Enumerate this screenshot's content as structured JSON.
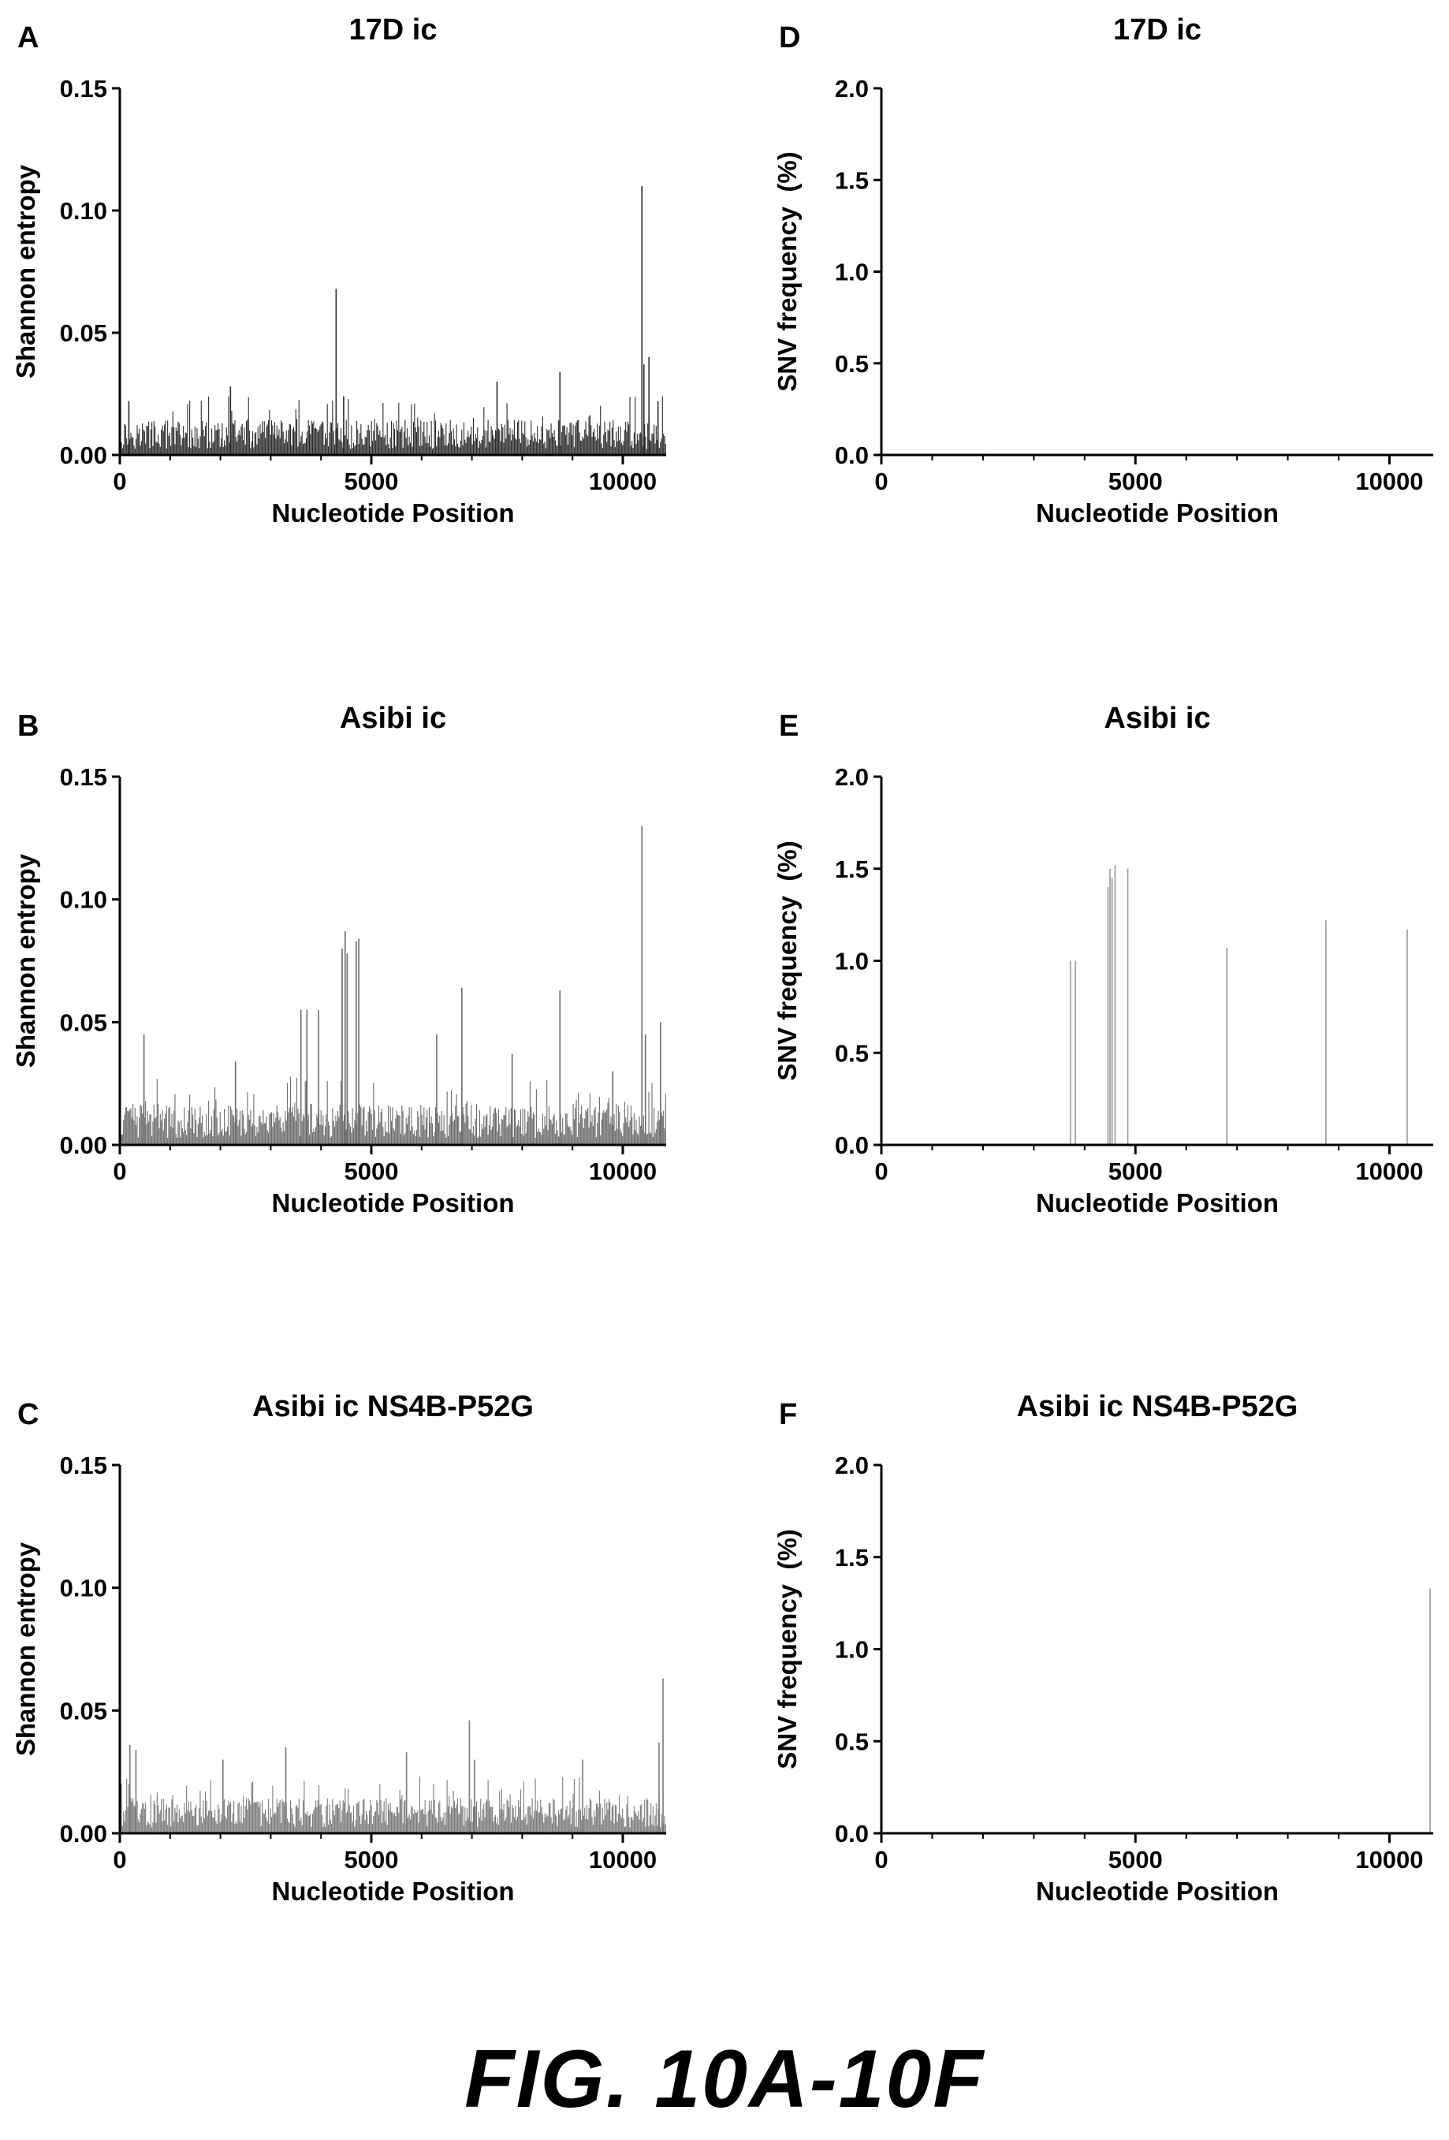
{
  "figure_caption": "FIG. 10A-10F",
  "chart_data": [
    {
      "panel_letter": "A",
      "title": "17D ic",
      "type": "bar",
      "xlabel": "Nucleotide Position",
      "ylabel": "Shannon entropy",
      "xlim": [
        0,
        10862
      ],
      "ylim": [
        0,
        0.15
      ],
      "xticks": [
        0,
        5000,
        10000
      ],
      "xtick_labels": [
        "0",
        "5000",
        "10000"
      ],
      "yticks": [
        0,
        0.05,
        0.1,
        0.15
      ],
      "ytick_labels": [
        "0.00",
        "0.05",
        "0.10",
        "0.15"
      ],
      "color": "#2b2b2b",
      "background": {
        "baseline": 0.006,
        "spread": 0.012,
        "max": 0.024
      },
      "peaks": [
        {
          "x": 180,
          "y": 0.022
        },
        {
          "x": 2200,
          "y": 0.028
        },
        {
          "x": 4300,
          "y": 0.068
        },
        {
          "x": 4450,
          "y": 0.024
        },
        {
          "x": 7500,
          "y": 0.03
        },
        {
          "x": 8750,
          "y": 0.034
        },
        {
          "x": 10380,
          "y": 0.11
        },
        {
          "x": 10420,
          "y": 0.037
        },
        {
          "x": 10520,
          "y": 0.04
        },
        {
          "x": 10700,
          "y": 0.022
        }
      ]
    },
    {
      "panel_letter": "B",
      "title": "Asibi ic",
      "type": "bar",
      "xlabel": "Nucleotide Position",
      "ylabel": "Shannon entropy",
      "xlim": [
        0,
        10862
      ],
      "ylim": [
        0,
        0.15
      ],
      "xticks": [
        0,
        5000,
        10000
      ],
      "xtick_labels": [
        "0",
        "5000",
        "10000"
      ],
      "yticks": [
        0,
        0.05,
        0.1,
        0.15
      ],
      "ytick_labels": [
        "0.00",
        "0.05",
        "0.10",
        "0.15"
      ],
      "color": "#6b6b6b",
      "background": {
        "baseline": 0.007,
        "spread": 0.014,
        "max": 0.028
      },
      "peaks": [
        {
          "x": 480,
          "y": 0.045
        },
        {
          "x": 2300,
          "y": 0.034
        },
        {
          "x": 3600,
          "y": 0.055
        },
        {
          "x": 3720,
          "y": 0.055
        },
        {
          "x": 3950,
          "y": 0.055
        },
        {
          "x": 4420,
          "y": 0.08
        },
        {
          "x": 4480,
          "y": 0.087
        },
        {
          "x": 4520,
          "y": 0.078
        },
        {
          "x": 4700,
          "y": 0.083
        },
        {
          "x": 4750,
          "y": 0.084
        },
        {
          "x": 6300,
          "y": 0.045
        },
        {
          "x": 6800,
          "y": 0.064
        },
        {
          "x": 7800,
          "y": 0.037
        },
        {
          "x": 8750,
          "y": 0.063
        },
        {
          "x": 9800,
          "y": 0.03
        },
        {
          "x": 10380,
          "y": 0.13
        },
        {
          "x": 10450,
          "y": 0.045
        },
        {
          "x": 10750,
          "y": 0.05
        }
      ]
    },
    {
      "panel_letter": "C",
      "title": "Asibi ic NS4B-P52G",
      "type": "bar",
      "xlabel": "Nucleotide Position",
      "ylabel": "Shannon entropy",
      "xlim": [
        0,
        10862
      ],
      "ylim": [
        0,
        0.15
      ],
      "xticks": [
        0,
        5000,
        10000
      ],
      "xtick_labels": [
        "0",
        "5000",
        "10000"
      ],
      "yticks": [
        0,
        0.05,
        0.1,
        0.15
      ],
      "ytick_labels": [
        "0.00",
        "0.05",
        "0.10",
        "0.15"
      ],
      "color": "#7a7a7a",
      "background": {
        "baseline": 0.006,
        "spread": 0.012,
        "max": 0.024
      },
      "peaks": [
        {
          "x": 200,
          "y": 0.036
        },
        {
          "x": 320,
          "y": 0.034
        },
        {
          "x": 2050,
          "y": 0.03
        },
        {
          "x": 3300,
          "y": 0.035
        },
        {
          "x": 5700,
          "y": 0.033
        },
        {
          "x": 6950,
          "y": 0.046
        },
        {
          "x": 7050,
          "y": 0.03
        },
        {
          "x": 9200,
          "y": 0.03
        },
        {
          "x": 10800,
          "y": 0.063
        },
        {
          "x": 10720,
          "y": 0.037
        }
      ]
    },
    {
      "panel_letter": "D",
      "title": "17D ic",
      "type": "bar",
      "xlabel": "Nucleotide Position",
      "ylabel": "SNV frequency  (%)",
      "xlim": [
        0,
        10862
      ],
      "ylim": [
        0,
        2.0
      ],
      "xticks": [
        0,
        5000,
        10000
      ],
      "xtick_labels": [
        "0",
        "5000",
        "10000"
      ],
      "yticks": [
        0,
        0.5,
        1.0,
        1.5,
        2.0
      ],
      "ytick_labels": [
        "0.0",
        "0.5",
        "1.0",
        "1.5",
        "2.0"
      ],
      "color": "#999999",
      "peaks": []
    },
    {
      "panel_letter": "E",
      "title": "Asibi ic",
      "type": "bar",
      "xlabel": "Nucleotide Position",
      "ylabel": "SNV frequency  (%)",
      "xlim": [
        0,
        10862
      ],
      "ylim": [
        0,
        2.0
      ],
      "xticks": [
        0,
        5000,
        10000
      ],
      "xtick_labels": [
        "0",
        "5000",
        "10000"
      ],
      "yticks": [
        0,
        0.5,
        1.0,
        1.5,
        2.0
      ],
      "ytick_labels": [
        "0.0",
        "0.5",
        "1.0",
        "1.5",
        "2.0"
      ],
      "color": "#999999",
      "peaks": [
        {
          "x": 3720,
          "y": 1.0
        },
        {
          "x": 3820,
          "y": 1.0
        },
        {
          "x": 4460,
          "y": 1.4
        },
        {
          "x": 4500,
          "y": 1.5
        },
        {
          "x": 4540,
          "y": 1.45
        },
        {
          "x": 4600,
          "y": 1.52
        },
        {
          "x": 4850,
          "y": 1.5
        },
        {
          "x": 6800,
          "y": 1.07
        },
        {
          "x": 8750,
          "y": 1.22
        },
        {
          "x": 10350,
          "y": 1.17
        }
      ]
    },
    {
      "panel_letter": "F",
      "title": "Asibi ic NS4B-P52G",
      "type": "bar",
      "xlabel": "Nucleotide Position",
      "ylabel": "SNV frequency  (%)",
      "xlim": [
        0,
        10862
      ],
      "ylim": [
        0,
        2.0
      ],
      "xticks": [
        0,
        5000,
        10000
      ],
      "xtick_labels": [
        "0",
        "5000",
        "10000"
      ],
      "yticks": [
        0,
        0.5,
        1.0,
        1.5,
        2.0
      ],
      "ytick_labels": [
        "0.0",
        "0.5",
        "1.0",
        "1.5",
        "2.0"
      ],
      "color": "#999999",
      "peaks": [
        {
          "x": 10800,
          "y": 1.33
        }
      ]
    }
  ]
}
